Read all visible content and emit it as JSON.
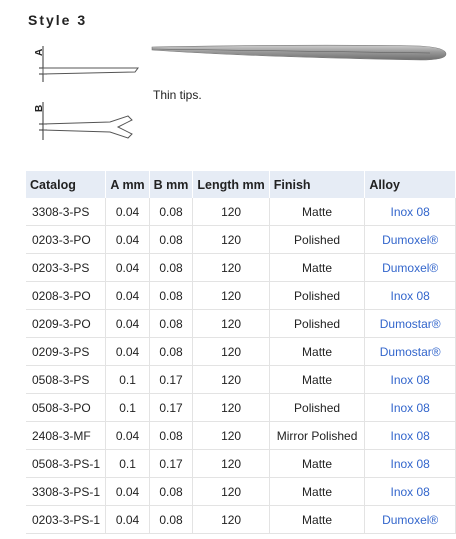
{
  "style_heading": "Style 3",
  "diagram_labels": {
    "a": "A",
    "b": "B"
  },
  "caption": "Thin tips.",
  "table": {
    "headers": [
      "Catalog",
      "A mm",
      "B mm",
      "Length mm",
      "Finish",
      "Alloy"
    ],
    "rows": [
      [
        "3308-3-PS",
        "0.04",
        "0.08",
        "120",
        "Matte",
        "Inox 08"
      ],
      [
        "0203-3-PO",
        "0.04",
        "0.08",
        "120",
        "Polished",
        "Dumoxel®"
      ],
      [
        "0203-3-PS",
        "0.04",
        "0.08",
        "120",
        "Matte",
        "Dumoxel®"
      ],
      [
        "0208-3-PO",
        "0.04",
        "0.08",
        "120",
        "Polished",
        "Inox 08"
      ],
      [
        "0209-3-PO",
        "0.04",
        "0.08",
        "120",
        "Polished",
        "Dumostar®"
      ],
      [
        "0209-3-PS",
        "0.04",
        "0.08",
        "120",
        "Matte",
        "Dumostar®"
      ],
      [
        "0508-3-PS",
        "0.1",
        "0.17",
        "120",
        "Matte",
        "Inox 08"
      ],
      [
        "0508-3-PO",
        "0.1",
        "0.17",
        "120",
        "Polished",
        "Inox 08"
      ],
      [
        "2408-3-MF",
        "0.04",
        "0.08",
        "120",
        "Mirror Polished",
        "Inox 08"
      ],
      [
        "0508-3-PS-1",
        "0.1",
        "0.17",
        "120",
        "Matte",
        "Inox 08"
      ],
      [
        "3308-3-PS-1",
        "0.04",
        "0.08",
        "120",
        "Matte",
        "Inox 08"
      ],
      [
        "0203-3-PS-1",
        "0.04",
        "0.08",
        "120",
        "Matte",
        "Dumoxel®"
      ]
    ]
  },
  "colors": {
    "header_bg": "#e6ecf5",
    "alloy_link": "#3366cc"
  }
}
